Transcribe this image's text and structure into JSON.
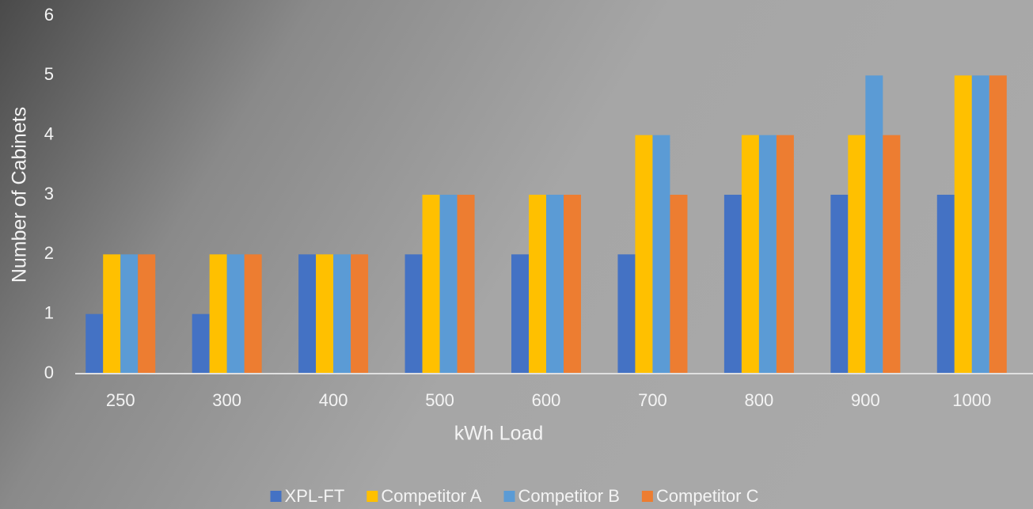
{
  "chart_data": {
    "type": "bar",
    "x_label": "kWh Load",
    "y_label": "Number of Cabinets",
    "categories": [
      "250",
      "300",
      "400",
      "500",
      "600",
      "700",
      "800",
      "900",
      "1000"
    ],
    "series": [
      {
        "name": "XPL-FT",
        "color": "#4472c4",
        "values": [
          1,
          1,
          2,
          2,
          2,
          2,
          3,
          3,
          3
        ]
      },
      {
        "name": "Competitor A",
        "color": "#ffc000",
        "values": [
          2,
          2,
          2,
          3,
          3,
          4,
          4,
          4,
          5
        ]
      },
      {
        "name": "Competitor B",
        "color": "#5b9bd5",
        "values": [
          2,
          2,
          2,
          3,
          3,
          4,
          4,
          5,
          5
        ]
      },
      {
        "name": "Competitor C",
        "color": "#ed7d31",
        "values": [
          2,
          2,
          2,
          3,
          3,
          3,
          4,
          4,
          5
        ]
      }
    ],
    "ylim": [
      0,
      6
    ],
    "yticks": [
      0,
      1,
      2,
      3,
      4,
      5,
      6
    ],
    "grid": false,
    "legend": "bottom"
  }
}
